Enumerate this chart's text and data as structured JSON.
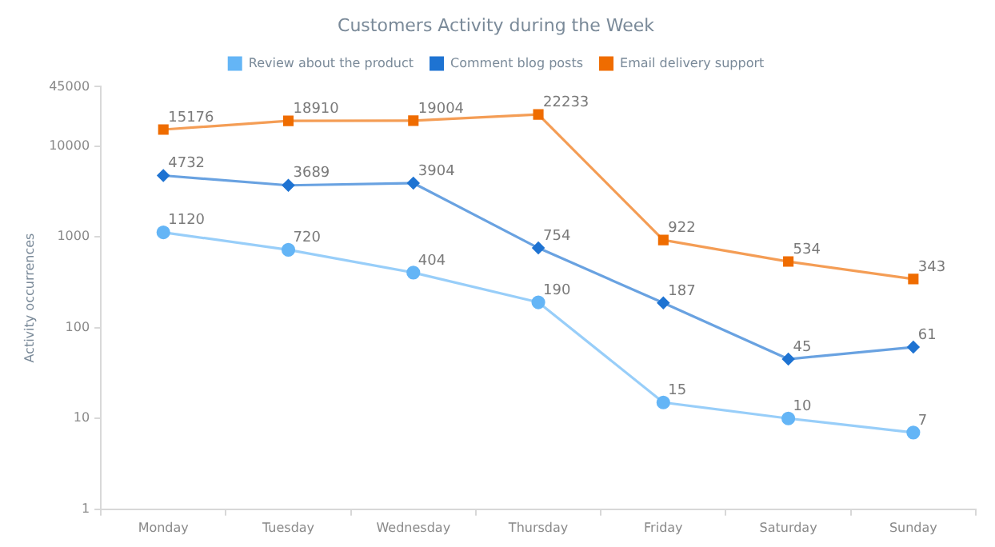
{
  "chart_data": {
    "type": "line",
    "title": "Customers Activity during the Week",
    "ylabel": "Activity occurrences",
    "categories": [
      "Monday",
      "Tuesday",
      "Wednesday",
      "Thursday",
      "Friday",
      "Saturday",
      "Sunday"
    ],
    "series": [
      {
        "name": "Review about the product",
        "color": "#64b5f6",
        "marker": "circle",
        "values": [
          1120,
          720,
          404,
          190,
          15,
          10,
          7
        ]
      },
      {
        "name": "Comment blog posts",
        "color": "#1e73d2",
        "marker": "diamond",
        "values": [
          4732,
          3689,
          3904,
          754,
          187,
          45,
          61
        ]
      },
      {
        "name": "Email delivery support",
        "color": "#ef6c00",
        "marker": "square",
        "values": [
          15176,
          18910,
          19004,
          22233,
          922,
          534,
          343
        ]
      }
    ],
    "log": "y",
    "ylim": [
      1,
      45000
    ],
    "yticks": [
      1,
      10,
      100,
      1000,
      10000,
      45000
    ],
    "legend": "top",
    "grid": false,
    "data_labels": true
  }
}
